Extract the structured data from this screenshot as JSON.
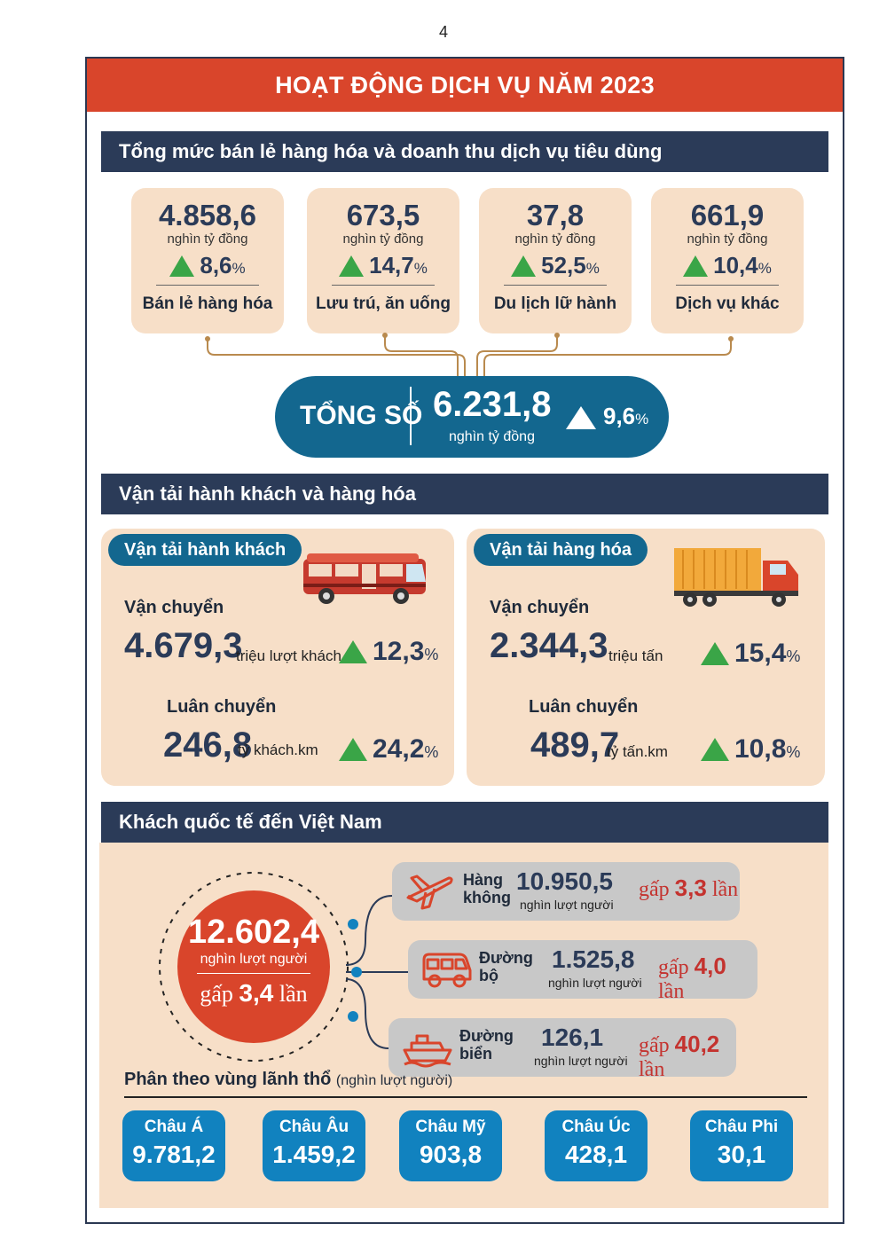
{
  "page_number": "4",
  "title": "HOẠT ĐỘNG DỊCH VỤ NĂM 2023",
  "retail": {
    "header": "Tổng mức bán lẻ hàng hóa và doanh thu dịch vụ tiêu dùng",
    "cards": [
      {
        "value": "4.858,6",
        "unit": "nghìn tỷ đồng",
        "growth": "8,6",
        "pct": "%",
        "label": "Bán lẻ hàng hóa"
      },
      {
        "value": "673,5",
        "unit": "nghìn tỷ đồng",
        "growth": "14,7",
        "pct": "%",
        "label": "Lưu trú, ăn uống"
      },
      {
        "value": "37,8",
        "unit": "nghìn tỷ đồng",
        "growth": "52,5",
        "pct": "%",
        "label": "Du lịch lữ hành"
      },
      {
        "value": "661,9",
        "unit": "nghìn tỷ đồng",
        "growth": "10,4",
        "pct": "%",
        "label": "Dịch vụ khác"
      }
    ],
    "total": {
      "label": "TỔNG SỐ",
      "value": "6.231,8",
      "unit": "nghìn tỷ đồng",
      "growth": "9,6",
      "pct": "%"
    },
    "colors": {
      "card_bg": "#f7dfc8",
      "up_arrow": "#3aa547",
      "total_bg": "#13678f"
    }
  },
  "transport": {
    "header": "Vận tải hành khách và hàng hóa",
    "passenger": {
      "tab": "Vận tải hành khách",
      "carry_label": "Vận chuyển",
      "carry_value": "4.679,3",
      "carry_unit": "triệu lượt khách",
      "carry_growth": "12,3",
      "rotation_label": "Luân chuyển",
      "rotation_value": "246,8",
      "rotation_unit": "tỷ khách.km",
      "rotation_growth": "24,2",
      "pct": "%",
      "icon": "bus-icon"
    },
    "cargo": {
      "tab": "Vận tải hàng hóa",
      "carry_label": "Vận chuyển",
      "carry_value": "2.344,3",
      "carry_unit": "triệu tấn",
      "carry_growth": "15,4",
      "rotation_label": "Luân chuyển",
      "rotation_value": "489,7",
      "rotation_unit": "tỷ tấn.km",
      "rotation_growth": "10,8",
      "pct": "%",
      "icon": "truck-icon"
    }
  },
  "international": {
    "header": "Khách quốc tế đến Việt Nam",
    "total_value": "12.602,4",
    "total_unit": "nghìn lượt người",
    "total_mult_prefix": "gấp",
    "total_mult_value": "3,4",
    "total_mult_suffix": "lần",
    "modes": [
      {
        "name_line1": "Hàng",
        "name_line2": "không",
        "value": "10.950,5",
        "unit": "nghìn lượt người",
        "prefix": "gấp",
        "mult": "3,3",
        "suffix": "lần",
        "icon": "airplane-icon"
      },
      {
        "name_line1": "Đường",
        "name_line2": "bộ",
        "value": "1.525,8",
        "unit": "nghìn lượt người",
        "prefix": "gấp",
        "mult": "4,0",
        "suffix": "lần",
        "icon": "van-icon"
      },
      {
        "name_line1": "Đường",
        "name_line2": "biển",
        "value": "126,1",
        "unit": "nghìn lượt người",
        "prefix": "gấp",
        "mult": "40,2",
        "suffix": "lần",
        "icon": "ship-icon"
      }
    ],
    "region_title": "Phân theo vùng lãnh thổ",
    "region_unit": "(nghìn lượt người)",
    "regions": [
      {
        "name": "Châu Á",
        "value": "9.781,2"
      },
      {
        "name": "Châu Âu",
        "value": "1.459,2"
      },
      {
        "name": "Châu Mỹ",
        "value": "903,8"
      },
      {
        "name": "Châu Úc",
        "value": "428,1"
      },
      {
        "name": "Châu Phi",
        "value": "30,1"
      }
    ],
    "colors": {
      "circle": "#d9452b",
      "region_box": "#1182bf",
      "mult_text": "#c4332f"
    }
  }
}
